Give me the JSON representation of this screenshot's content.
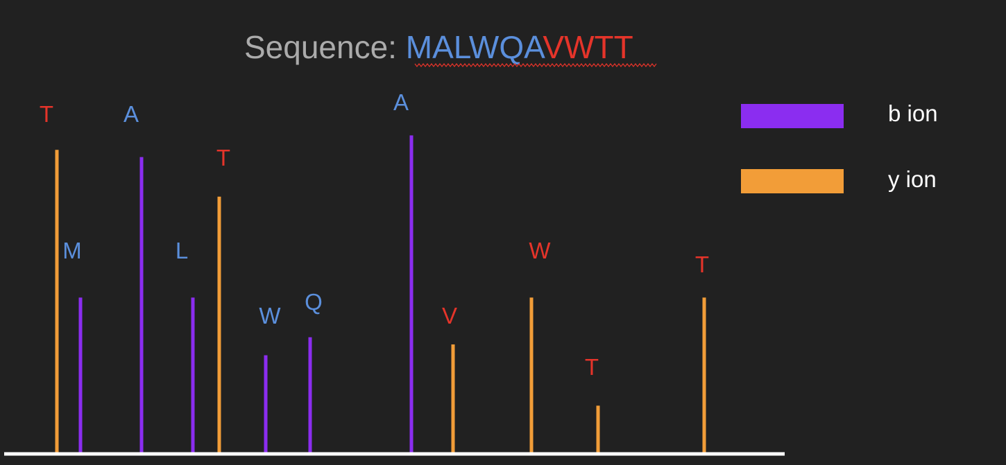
{
  "title": {
    "prefix": "Sequence: ",
    "blue_part": "MALWQA",
    "red_part": "VWTT"
  },
  "legend": [
    {
      "label": "b ion",
      "color": "#8b2df0"
    },
    {
      "label": "y ion",
      "color": "#f29d38"
    }
  ],
  "colors": {
    "background": "#212121",
    "b_label": "#5b8fdc",
    "y_label": "#e5342a",
    "title_gray": "#ababab",
    "axis": "#ffffff",
    "spellcheck": "#e5342a"
  },
  "peaks": [
    {
      "ion": "y",
      "label": "T",
      "intensity": 0.84
    },
    {
      "ion": "b",
      "label": "M",
      "intensity": 0.43
    },
    {
      "ion": "b",
      "label": "A",
      "intensity": 0.82
    },
    {
      "ion": "b",
      "label": "L",
      "intensity": 0.43
    },
    {
      "ion": "y",
      "label": "T",
      "intensity": 0.71
    },
    {
      "ion": "b",
      "label": "W",
      "intensity": 0.27
    },
    {
      "ion": "b",
      "label": "Q",
      "intensity": 0.32
    },
    {
      "ion": "b",
      "label": "A",
      "intensity": 0.88
    },
    {
      "ion": "y",
      "label": "V",
      "intensity": 0.3
    },
    {
      "ion": "y",
      "label": "W",
      "intensity": 0.43
    },
    {
      "ion": "y",
      "label": "T",
      "intensity": 0.13
    },
    {
      "ion": "y",
      "label": "T",
      "intensity": 0.43
    }
  ]
}
